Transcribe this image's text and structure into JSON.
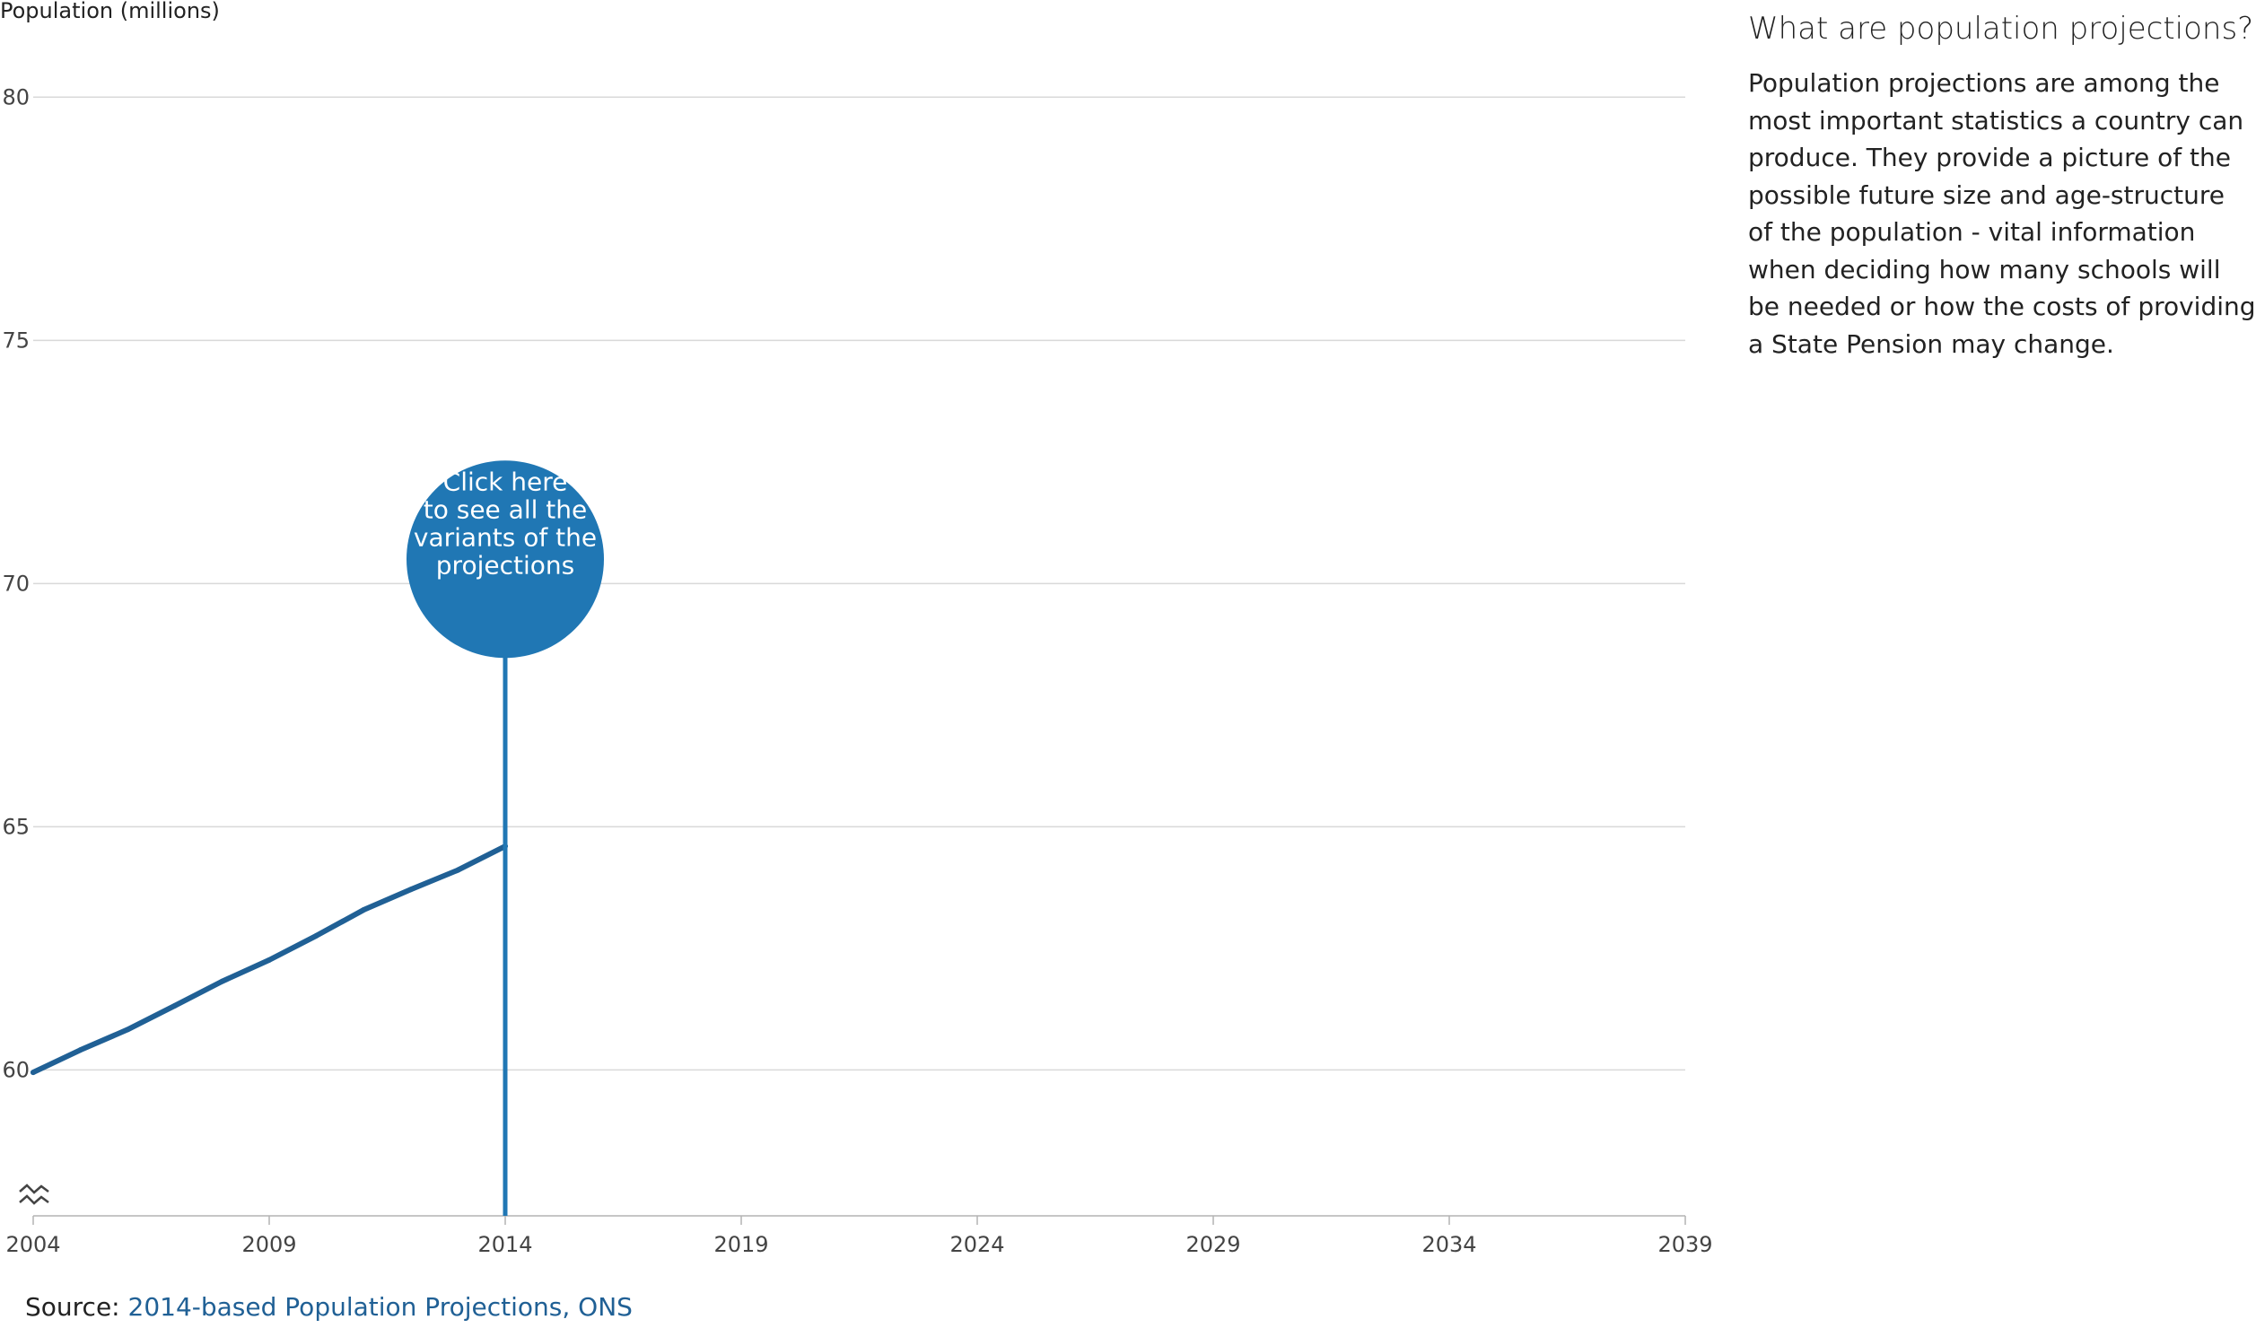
{
  "chart_data": {
    "type": "line",
    "ylabel": "Population (millions)",
    "xlabel": "",
    "x_ticks": [
      "2004",
      "2009",
      "2014",
      "2019",
      "2024",
      "2029",
      "2034",
      "2039"
    ],
    "y_ticks": [
      "60",
      "65",
      "70",
      "75",
      "80"
    ],
    "xlim": [
      2004,
      2039
    ],
    "ylim": [
      57,
      81.5
    ],
    "y_axis_break": true,
    "grid": "horizontal",
    "series": [
      {
        "color": "#206095",
        "x": [
          2004,
          2005,
          2006,
          2007,
          2008,
          2009,
          2010,
          2011,
          2012,
          2013,
          2014
        ],
        "y": [
          59.95,
          60.41,
          60.83,
          61.32,
          61.82,
          62.26,
          62.76,
          63.29,
          63.71,
          64.11,
          64.6
        ]
      }
    ],
    "marker": {
      "x": 2014,
      "label_lines": [
        "Click here",
        "to see all the",
        "variants of the",
        "projections"
      ],
      "color": "#2077b4"
    }
  },
  "side_panel": {
    "title": "What are population projections?",
    "body": "Population projections are among the most important statistics a country can produce. They provide a picture of the possible future size and age-structure of the population - vital information when deciding how many schools will be needed or how the costs of providing a State Pension may change."
  },
  "source": {
    "prefix": "Source: ",
    "link_text": "2014-based Population Projections, ONS"
  },
  "colors": {
    "series": "#206095",
    "bubble": "#2077b4",
    "link": "#206095",
    "grid": "#d9d9d9"
  },
  "icons": {
    "axis_break": "axis-break-icon"
  }
}
